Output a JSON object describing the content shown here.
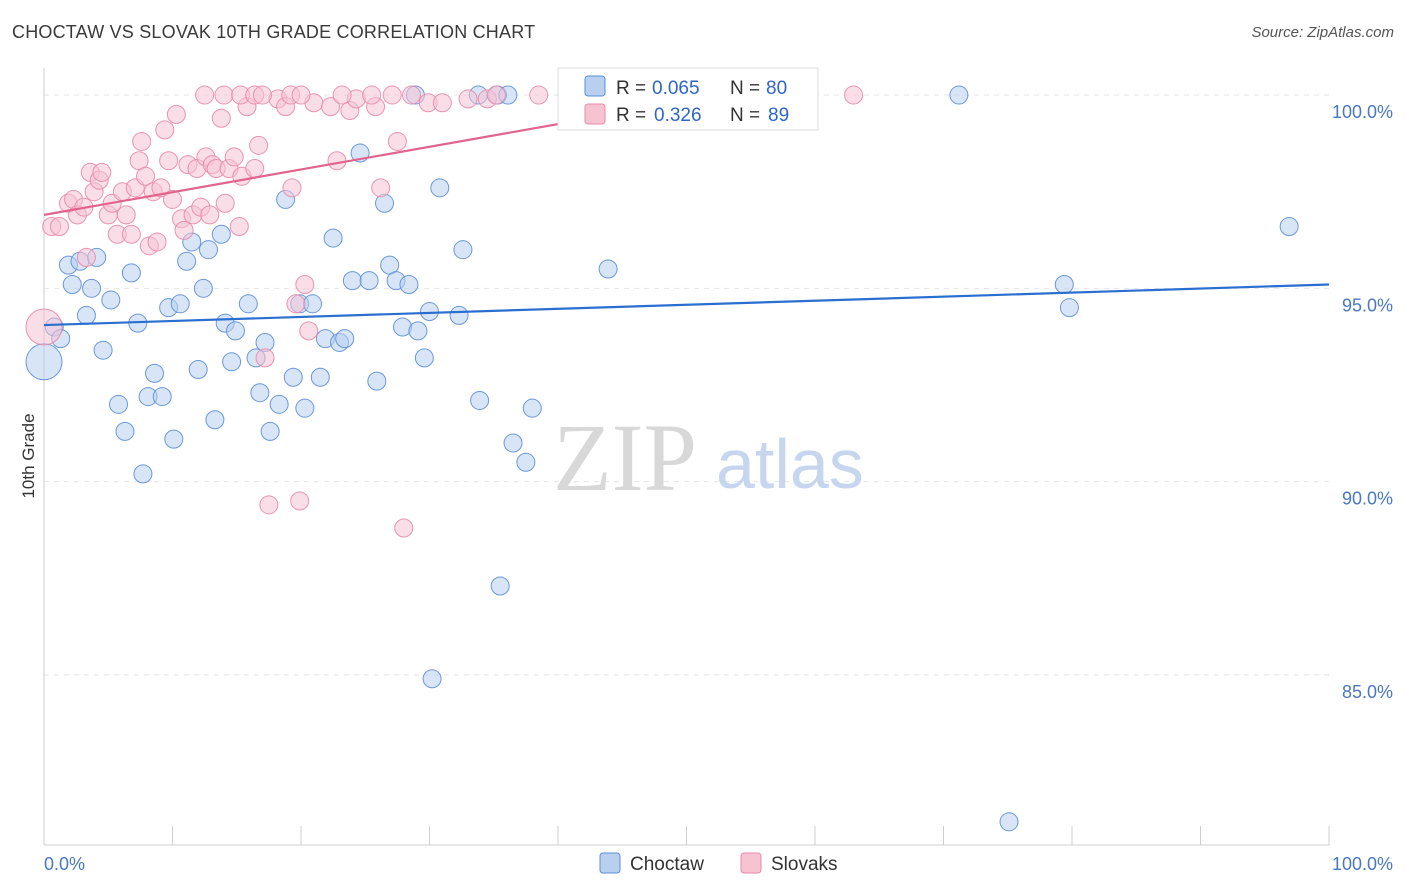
{
  "chart_data": {
    "type": "scatter",
    "title": "CHOCTAW VS SLOVAK 10TH GRADE CORRELATION CHART",
    "source": "Source: ZipAtlas.com",
    "xlabel": "",
    "ylabel": "10th Grade",
    "xlim": [
      0,
      100
    ],
    "ylim": [
      80.6,
      100.7
    ],
    "x_tick_labels": [
      "0.0%",
      "100.0%"
    ],
    "y_ticks": [
      {
        "value": 100,
        "label": "100.0%"
      },
      {
        "value": 95,
        "label": "95.0%"
      },
      {
        "value": 90,
        "label": "90.0%"
      },
      {
        "value": 85,
        "label": "85.0%"
      }
    ],
    "watermark": {
      "part1": "ZIP",
      "part2": "atlas"
    },
    "legend": {
      "r_label": "R =",
      "n_label": "N =",
      "entries": [
        {
          "r": "0.065",
          "n": "80"
        },
        {
          "r": "0.326",
          "n": "89"
        }
      ]
    },
    "series": [
      {
        "name": "Choctaw",
        "color": "#5b8fd6",
        "fill": "#b8cff0",
        "trend": {
          "x0": 0,
          "y0": 94.05,
          "x1": 100,
          "y1": 95.1
        },
        "points": [
          [
            0,
            93.1
          ],
          [
            0.8,
            94.0
          ],
          [
            1.3,
            93.7
          ],
          [
            1.9,
            95.6
          ],
          [
            2.2,
            95.1
          ],
          [
            2.8,
            95.7
          ],
          [
            3.3,
            94.3
          ],
          [
            3.7,
            95.0
          ],
          [
            4.1,
            95.8
          ],
          [
            4.6,
            93.4
          ],
          [
            5.2,
            94.7
          ],
          [
            5.8,
            92.0
          ],
          [
            6.3,
            91.3
          ],
          [
            6.8,
            95.4
          ],
          [
            7.3,
            94.1
          ],
          [
            7.7,
            90.2
          ],
          [
            8.1,
            92.2
          ],
          [
            8.6,
            92.8
          ],
          [
            9.2,
            92.2
          ],
          [
            9.7,
            94.5
          ],
          [
            10.1,
            91.1
          ],
          [
            10.6,
            94.6
          ],
          [
            11.1,
            95.7
          ],
          [
            11.5,
            96.2
          ],
          [
            12.0,
            92.9
          ],
          [
            12.4,
            95.0
          ],
          [
            12.8,
            96.0
          ],
          [
            13.3,
            91.6
          ],
          [
            13.8,
            96.4
          ],
          [
            14.1,
            94.1
          ],
          [
            14.6,
            93.1
          ],
          [
            14.9,
            93.9
          ],
          [
            15.9,
            94.6
          ],
          [
            16.5,
            93.2
          ],
          [
            16.8,
            92.3
          ],
          [
            17.2,
            93.6
          ],
          [
            17.6,
            91.3
          ],
          [
            18.3,
            92.0
          ],
          [
            18.8,
            97.3
          ],
          [
            19.4,
            92.7
          ],
          [
            19.9,
            94.6
          ],
          [
            20.3,
            91.9
          ],
          [
            20.9,
            94.6
          ],
          [
            21.5,
            92.7
          ],
          [
            21.9,
            93.7
          ],
          [
            22.5,
            96.3
          ],
          [
            23.0,
            93.6
          ],
          [
            23.4,
            93.7
          ],
          [
            24.0,
            95.2
          ],
          [
            24.6,
            98.5
          ],
          [
            25.3,
            95.2
          ],
          [
            25.9,
            92.6
          ],
          [
            26.5,
            97.2
          ],
          [
            26.9,
            95.6
          ],
          [
            27.4,
            95.2
          ],
          [
            27.9,
            94.0
          ],
          [
            28.4,
            95.1
          ],
          [
            29.1,
            93.9
          ],
          [
            29.6,
            93.2
          ],
          [
            30.0,
            94.4
          ],
          [
            30.2,
            84.9
          ],
          [
            30.8,
            97.6
          ],
          [
            32.3,
            94.3
          ],
          [
            32.6,
            96.0
          ],
          [
            33.9,
            92.1
          ],
          [
            35.5,
            87.3
          ],
          [
            36.5,
            91.0
          ],
          [
            37.5,
            90.5
          ],
          [
            38.0,
            91.9
          ],
          [
            43.9,
            95.5
          ],
          [
            28.9,
            100.0
          ],
          [
            33.8,
            100.0
          ],
          [
            35.3,
            100.0
          ],
          [
            36.1,
            100.0
          ],
          [
            45.5,
            100.0
          ],
          [
            71.2,
            100.0
          ],
          [
            75.1,
            81.2
          ],
          [
            79.4,
            95.1
          ],
          [
            79.8,
            94.5
          ],
          [
            96.9,
            96.6
          ]
        ]
      },
      {
        "name": "Slovaks",
        "color": "#e88aaa",
        "fill": "#f6c3d3",
        "trend": {
          "x0": 0,
          "y0": 96.9,
          "x1": 54.5,
          "y1": 100.1
        },
        "points": [
          [
            0,
            94.0
          ],
          [
            0.6,
            96.6
          ],
          [
            1.2,
            96.6
          ],
          [
            1.9,
            97.2
          ],
          [
            2.3,
            97.3
          ],
          [
            2.6,
            96.9
          ],
          [
            3.1,
            97.1
          ],
          [
            3.3,
            95.8
          ],
          [
            3.6,
            98.0
          ],
          [
            3.9,
            97.5
          ],
          [
            4.3,
            97.8
          ],
          [
            4.5,
            98.0
          ],
          [
            5.0,
            96.9
          ],
          [
            5.3,
            97.2
          ],
          [
            5.7,
            96.4
          ],
          [
            6.1,
            97.5
          ],
          [
            6.4,
            96.9
          ],
          [
            6.8,
            96.4
          ],
          [
            7.1,
            97.6
          ],
          [
            7.4,
            98.3
          ],
          [
            7.6,
            98.8
          ],
          [
            7.9,
            97.9
          ],
          [
            8.2,
            96.1
          ],
          [
            8.5,
            97.5
          ],
          [
            8.8,
            96.2
          ],
          [
            9.1,
            97.6
          ],
          [
            9.4,
            99.1
          ],
          [
            9.7,
            98.3
          ],
          [
            10.0,
            97.3
          ],
          [
            10.3,
            99.5
          ],
          [
            10.7,
            96.8
          ],
          [
            10.9,
            96.5
          ],
          [
            11.2,
            98.2
          ],
          [
            11.6,
            96.9
          ],
          [
            11.9,
            98.1
          ],
          [
            12.2,
            97.1
          ],
          [
            12.6,
            98.4
          ],
          [
            12.9,
            96.9
          ],
          [
            13.1,
            98.2
          ],
          [
            13.4,
            98.1
          ],
          [
            13.8,
            99.4
          ],
          [
            14.1,
            97.2
          ],
          [
            14.4,
            98.1
          ],
          [
            14.8,
            98.4
          ],
          [
            15.2,
            96.6
          ],
          [
            15.4,
            97.9
          ],
          [
            15.8,
            99.7
          ],
          [
            16.4,
            98.1
          ],
          [
            16.7,
            98.7
          ],
          [
            17.2,
            93.2
          ],
          [
            17.5,
            89.4
          ],
          [
            18.2,
            99.9
          ],
          [
            18.8,
            99.7
          ],
          [
            19.3,
            97.6
          ],
          [
            19.6,
            94.6
          ],
          [
            19.9,
            89.5
          ],
          [
            20.3,
            95.1
          ],
          [
            20.6,
            93.9
          ],
          [
            21.0,
            99.8
          ],
          [
            22.3,
            99.7
          ],
          [
            22.8,
            98.3
          ],
          [
            23.8,
            99.6
          ],
          [
            24.3,
            99.9
          ],
          [
            25.8,
            99.7
          ],
          [
            26.2,
            97.6
          ],
          [
            27.5,
            98.8
          ],
          [
            28.0,
            88.8
          ],
          [
            29.9,
            99.8
          ],
          [
            31.0,
            99.8
          ],
          [
            33.0,
            99.9
          ],
          [
            34.5,
            99.9
          ],
          [
            35.2,
            100.0
          ],
          [
            38.5,
            100.0
          ],
          [
            42.0,
            99.9
          ],
          [
            47.0,
            100.0
          ],
          [
            52.0,
            100.0
          ],
          [
            55.0,
            100.0
          ],
          [
            63.0,
            100.0
          ],
          [
            12.5,
            100.0
          ],
          [
            14.0,
            100.0
          ],
          [
            15.3,
            100.0
          ],
          [
            16.4,
            100.0
          ],
          [
            17.0,
            100.0
          ],
          [
            19.2,
            100.0
          ],
          [
            20.0,
            100.0
          ],
          [
            23.2,
            100.0
          ],
          [
            25.5,
            100.0
          ],
          [
            27.1,
            100.0
          ],
          [
            28.6,
            100.0
          ]
        ]
      }
    ]
  }
}
